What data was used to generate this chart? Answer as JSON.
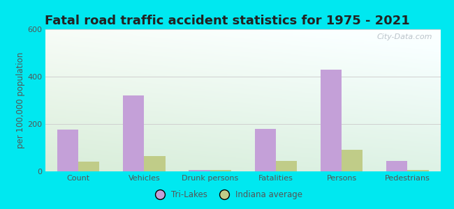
{
  "title": "Fatal road traffic accident statistics for 1975 - 2021",
  "ylabel": "per 100,000 population",
  "categories": [
    "Count",
    "Vehicles",
    "Drunk persons",
    "Fatalities",
    "Persons",
    "Pedestrians"
  ],
  "tri_lakes": [
    175,
    320,
    5,
    178,
    430,
    45
  ],
  "indiana_avg": [
    40,
    65,
    5,
    45,
    90,
    5
  ],
  "tri_lakes_color": "#c4a0d8",
  "indiana_color": "#c0cc88",
  "ylim": [
    0,
    600
  ],
  "yticks": [
    0,
    200,
    400,
    600
  ],
  "bar_width": 0.32,
  "background_outer": "#00e8f0",
  "grid_color": "#d0d0d0",
  "title_fontsize": 13,
  "label_fontsize": 8.5,
  "tick_fontsize": 8,
  "legend_label_1": "Tri-Lakes",
  "legend_label_2": "Indiana average",
  "watermark": "City-Data.com"
}
